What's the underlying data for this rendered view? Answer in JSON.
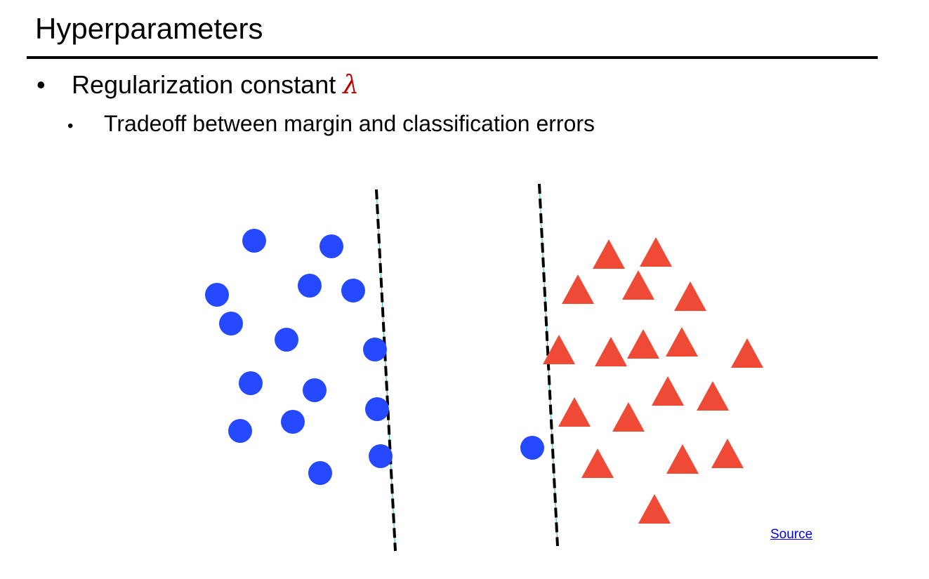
{
  "slide": {
    "title": "Hyperparameters",
    "bullet_1": {
      "text": "Regularization constant",
      "symbol": "λ",
      "symbol_color": "#c00000"
    },
    "bullet_2": {
      "text": "Tradeoff between margin and classification errors"
    },
    "bullet_marker": "•"
  },
  "figure": {
    "circle_color": "#2449ff",
    "triangle_color": "#ee4a35",
    "separator_color": "#000000",
    "separator_style": "dashed",
    "left_panel": {
      "description": "blue circles separated by a dashed line, no errors"
    },
    "right_panel": {
      "description": "red triangles with dashed line and one blue circle on the triangle side"
    }
  },
  "source": {
    "label": "Source"
  }
}
